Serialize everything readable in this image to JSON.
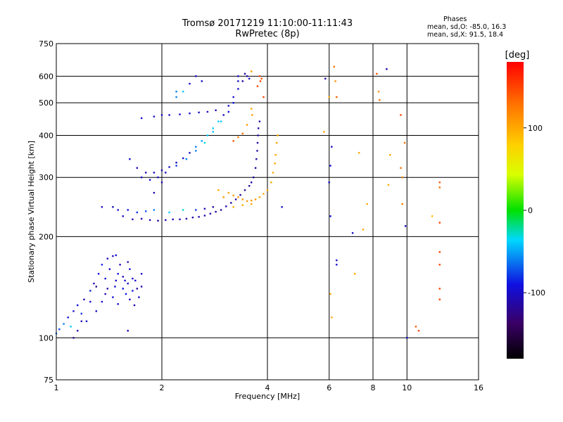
{
  "header": {
    "title": "Tromsø 20171219 11:10:00-11:11:43",
    "subtitle": "RwPretec (8p)"
  },
  "phase_stats": {
    "heading": "Phases",
    "o_line": "mean, sd,O: -85.0, 16.3",
    "x_line": "mean, sd,X:  91.5, 18.4"
  },
  "colorbar": {
    "label": "[deg]",
    "ticks": [
      {
        "value": 100,
        "label": "100"
      },
      {
        "value": 0,
        "label": "0"
      },
      {
        "value": -100,
        "label": "-100"
      }
    ],
    "range": [
      -180,
      180
    ]
  },
  "chart_data": {
    "type": "scatter",
    "title": "Tromsø 20171219 11:10:00-11:11:43",
    "subtitle": "RwPretec (8p)",
    "xlabel": "Frequency [MHz]",
    "ylabel": "Stationary phase Virtual Height [km]",
    "x_scale": "log",
    "y_scale": "log",
    "xlim": [
      1,
      16
    ],
    "ylim": [
      75,
      750
    ],
    "x_ticks": [
      {
        "value": 1,
        "label": "1"
      },
      {
        "value": 2,
        "label": "2"
      },
      {
        "value": 4,
        "label": "4"
      },
      {
        "value": 6,
        "label": "6"
      },
      {
        "value": 8,
        "label": "8"
      },
      {
        "value": 10,
        "label": "10"
      },
      {
        "value": 16,
        "label": "16"
      }
    ],
    "y_ticks": [
      {
        "value": 75,
        "label": "75"
      },
      {
        "value": 100,
        "label": "100"
      },
      {
        "value": 200,
        "label": "200"
      },
      {
        "value": 300,
        "label": "300"
      },
      {
        "value": 400,
        "label": "400"
      },
      {
        "value": 500,
        "label": "500"
      },
      {
        "value": 600,
        "label": "600"
      },
      {
        "value": 750,
        "label": "750"
      }
    ],
    "grid": true,
    "color_scale": {
      "name": "Phase [deg]",
      "min": -180,
      "max": 180
    },
    "points": [
      [
        1.0,
        103,
        -60
      ],
      [
        1.02,
        106,
        -75
      ],
      [
        1.05,
        110,
        -60
      ],
      [
        1.08,
        115,
        -90
      ],
      [
        1.1,
        108,
        -40
      ],
      [
        1.12,
        120,
        -100
      ],
      [
        1.15,
        125,
        -90
      ],
      [
        1.15,
        105,
        -110
      ],
      [
        1.18,
        118,
        -80
      ],
      [
        1.2,
        130,
        -110
      ],
      [
        1.22,
        112,
        -100
      ],
      [
        1.25,
        138,
        -85
      ],
      [
        1.28,
        145,
        -105
      ],
      [
        1.3,
        120,
        -95
      ],
      [
        1.32,
        155,
        -90
      ],
      [
        1.35,
        165,
        -85
      ],
      [
        1.35,
        128,
        -100
      ],
      [
        1.38,
        150,
        -95
      ],
      [
        1.4,
        140,
        -110
      ],
      [
        1.4,
        172,
        -100
      ],
      [
        1.42,
        160,
        -100
      ],
      [
        1.45,
        132,
        -95
      ],
      [
        1.45,
        175,
        -100
      ],
      [
        1.48,
        148,
        -105
      ],
      [
        1.5,
        155,
        -95
      ],
      [
        1.5,
        126,
        -95
      ],
      [
        1.52,
        165,
        -100
      ],
      [
        1.55,
        140,
        -90
      ],
      [
        1.55,
        152,
        -105
      ],
      [
        1.58,
        135,
        -90
      ],
      [
        1.6,
        145,
        -100
      ],
      [
        1.62,
        160,
        -95
      ],
      [
        1.62,
        130,
        -105
      ],
      [
        1.65,
        150,
        -100
      ],
      [
        1.65,
        138,
        -90
      ],
      [
        1.68,
        148,
        -100
      ],
      [
        1.7,
        140,
        -110
      ],
      [
        1.72,
        132,
        -95
      ],
      [
        1.75,
        155,
        -100
      ],
      [
        1.75,
        142,
        -105
      ],
      [
        1.12,
        100,
        -120
      ],
      [
        1.18,
        112,
        -110
      ],
      [
        1.25,
        128,
        -100
      ],
      [
        1.3,
        142,
        -120
      ],
      [
        1.38,
        135,
        -105
      ],
      [
        1.47,
        142,
        -95
      ],
      [
        1.57,
        148,
        -95
      ],
      [
        1.67,
        125,
        -105
      ],
      [
        1.6,
        168,
        -105
      ],
      [
        1.48,
        176,
        -95
      ],
      [
        1.6,
        105,
        -100
      ],
      [
        1.55,
        230,
        -105
      ],
      [
        1.65,
        225,
        -110
      ],
      [
        1.75,
        226,
        -110
      ],
      [
        1.85,
        224,
        -110
      ],
      [
        1.95,
        223,
        -110
      ],
      [
        2.05,
        224,
        -110
      ],
      [
        2.15,
        225,
        -110
      ],
      [
        2.25,
        225,
        -110
      ],
      [
        2.35,
        226,
        -110
      ],
      [
        2.45,
        228,
        -110
      ],
      [
        2.55,
        229,
        -110
      ],
      [
        2.65,
        231,
        -110
      ],
      [
        2.75,
        234,
        -110
      ],
      [
        2.85,
        237,
        -110
      ],
      [
        2.95,
        240,
        -110
      ],
      [
        3.05,
        246,
        -110
      ],
      [
        3.15,
        252,
        -115
      ],
      [
        3.25,
        258,
        -115
      ],
      [
        3.35,
        266,
        -115
      ],
      [
        3.45,
        275,
        -115
      ],
      [
        3.55,
        283,
        -115
      ],
      [
        3.6,
        290,
        -115
      ],
      [
        3.65,
        300,
        -115
      ],
      [
        3.7,
        320,
        -115
      ],
      [
        3.72,
        340,
        -110
      ],
      [
        3.74,
        360,
        -110
      ],
      [
        3.75,
        380,
        -115
      ],
      [
        3.76,
        400,
        -110
      ],
      [
        3.77,
        420,
        -115
      ],
      [
        3.8,
        440,
        -110
      ],
      [
        1.35,
        245,
        -100
      ],
      [
        1.45,
        245,
        -100
      ],
      [
        1.5,
        240,
        -100
      ],
      [
        1.6,
        240,
        -90
      ],
      [
        1.7,
        236,
        -80
      ],
      [
        1.8,
        238,
        -70
      ],
      [
        1.9,
        240,
        -60
      ],
      [
        2.1,
        236,
        -40
      ],
      [
        2.3,
        240,
        -30
      ],
      [
        2.5,
        240,
        -80
      ],
      [
        2.65,
        242,
        -110
      ],
      [
        2.8,
        245,
        -110
      ],
      [
        1.62,
        340,
        -100
      ],
      [
        1.7,
        320,
        -100
      ],
      [
        1.8,
        310,
        -110
      ],
      [
        1.9,
        310,
        -100
      ],
      [
        2.0,
        315,
        -100
      ],
      [
        2.1,
        322,
        -100
      ],
      [
        2.2,
        332,
        -100
      ],
      [
        2.3,
        342,
        -100
      ],
      [
        2.4,
        355,
        -100
      ],
      [
        2.5,
        370,
        -60
      ],
      [
        2.6,
        385,
        -50
      ],
      [
        2.7,
        400,
        -40
      ],
      [
        2.8,
        420,
        -40
      ],
      [
        2.9,
        440,
        -40
      ],
      [
        3.0,
        460,
        -100
      ],
      [
        3.1,
        490,
        -100
      ],
      [
        3.2,
        520,
        -100
      ],
      [
        3.3,
        550,
        -100
      ],
      [
        3.4,
        580,
        -110
      ],
      [
        3.5,
        600,
        -110
      ],
      [
        1.75,
        300,
        -100
      ],
      [
        1.85,
        295,
        -100
      ],
      [
        1.95,
        300,
        -100
      ],
      [
        2.05,
        310,
        -100
      ],
      [
        2.2,
        325,
        -80
      ],
      [
        2.35,
        340,
        -60
      ],
      [
        2.5,
        360,
        -60
      ],
      [
        2.65,
        380,
        -30
      ],
      [
        2.8,
        410,
        -40
      ],
      [
        2.95,
        440,
        -40
      ],
      [
        3.1,
        470,
        -90
      ],
      [
        3.2,
        500,
        -90
      ],
      [
        1.9,
        270,
        -110
      ],
      [
        2.0,
        290,
        -110
      ],
      [
        1.9,
        455,
        -100
      ],
      [
        2.0,
        460,
        -100
      ],
      [
        2.1,
        460,
        -100
      ],
      [
        2.25,
        462,
        -100
      ],
      [
        2.4,
        465,
        -100
      ],
      [
        2.55,
        468,
        -100
      ],
      [
        2.7,
        470,
        -100
      ],
      [
        2.85,
        475,
        -100
      ],
      [
        1.75,
        450,
        -100
      ],
      [
        2.2,
        520,
        -60
      ],
      [
        2.3,
        540,
        -40
      ],
      [
        2.4,
        570,
        -100
      ],
      [
        2.5,
        600,
        -100
      ],
      [
        2.6,
        580,
        -100
      ],
      [
        2.2,
        540,
        -60
      ],
      [
        3.3,
        600,
        -100
      ],
      [
        3.45,
        610,
        -110
      ],
      [
        3.55,
        590,
        -100
      ],
      [
        3.3,
        580,
        -100
      ],
      [
        3.8,
        600,
        150
      ],
      [
        3.82,
        580,
        150
      ],
      [
        3.85,
        590,
        140
      ],
      [
        3.9,
        520,
        150
      ],
      [
        3.75,
        560,
        150
      ],
      [
        3.6,
        620,
        110
      ],
      [
        3.2,
        385,
        140
      ],
      [
        3.3,
        395,
        120
      ],
      [
        3.4,
        405,
        130
      ],
      [
        3.5,
        430,
        110
      ],
      [
        3.6,
        480,
        100
      ],
      [
        3.62,
        460,
        110
      ],
      [
        3.1,
        270,
        100
      ],
      [
        3.2,
        265,
        110
      ],
      [
        3.3,
        262,
        110
      ],
      [
        3.4,
        258,
        110
      ],
      [
        3.5,
        255,
        110
      ],
      [
        3.6,
        256,
        110
      ],
      [
        3.7,
        258,
        110
      ],
      [
        3.8,
        262,
        100
      ],
      [
        3.9,
        268,
        100
      ],
      [
        4.0,
        275,
        100
      ],
      [
        4.1,
        290,
        100
      ],
      [
        4.15,
        310,
        100
      ],
      [
        4.2,
        330,
        100
      ],
      [
        4.22,
        350,
        100
      ],
      [
        4.25,
        380,
        100
      ],
      [
        4.28,
        400,
        100
      ],
      [
        3.6,
        250,
        100
      ],
      [
        2.9,
        275,
        100
      ],
      [
        3.0,
        262,
        110
      ],
      [
        3.2,
        245,
        100
      ],
      [
        3.4,
        248,
        100
      ],
      [
        4.4,
        245,
        -100
      ],
      [
        5.8,
        410,
        100
      ],
      [
        5.85,
        590,
        -110
      ],
      [
        6.0,
        520,
        100
      ],
      [
        6.2,
        640,
        130
      ],
      [
        6.25,
        580,
        110
      ],
      [
        6.3,
        520,
        140
      ],
      [
        6.1,
        370,
        -100
      ],
      [
        6.05,
        325,
        -90
      ],
      [
        6.0,
        290,
        -100
      ],
      [
        6.05,
        230,
        -90
      ],
      [
        6.05,
        135,
        100
      ],
      [
        6.1,
        115,
        100
      ],
      [
        6.3,
        165,
        -100
      ],
      [
        6.3,
        170,
        -100
      ],
      [
        7.0,
        205,
        -100
      ],
      [
        7.1,
        155,
        100
      ],
      [
        7.3,
        355,
        100
      ],
      [
        7.7,
        250,
        100
      ],
      [
        7.5,
        210,
        100
      ],
      [
        8.2,
        610,
        140
      ],
      [
        8.3,
        540,
        110
      ],
      [
        8.35,
        510,
        130
      ],
      [
        8.75,
        630,
        -110
      ],
      [
        8.85,
        285,
        100
      ],
      [
        8.95,
        350,
        100
      ],
      [
        9.6,
        460,
        150
      ],
      [
        9.6,
        320,
        130
      ],
      [
        9.7,
        300,
        120
      ],
      [
        9.7,
        250,
        120
      ],
      [
        9.85,
        380,
        130
      ],
      [
        9.9,
        215,
        -100
      ],
      [
        10.0,
        100,
        -100
      ],
      [
        10.6,
        108,
        140
      ],
      [
        10.8,
        105,
        150
      ],
      [
        11.8,
        230,
        90
      ],
      [
        12.4,
        290,
        140
      ],
      [
        12.4,
        280,
        130
      ],
      [
        12.4,
        220,
        150
      ],
      [
        12.4,
        180,
        150
      ],
      [
        12.4,
        165,
        150
      ],
      [
        12.4,
        140,
        150
      ],
      [
        12.4,
        130,
        150
      ]
    ]
  }
}
